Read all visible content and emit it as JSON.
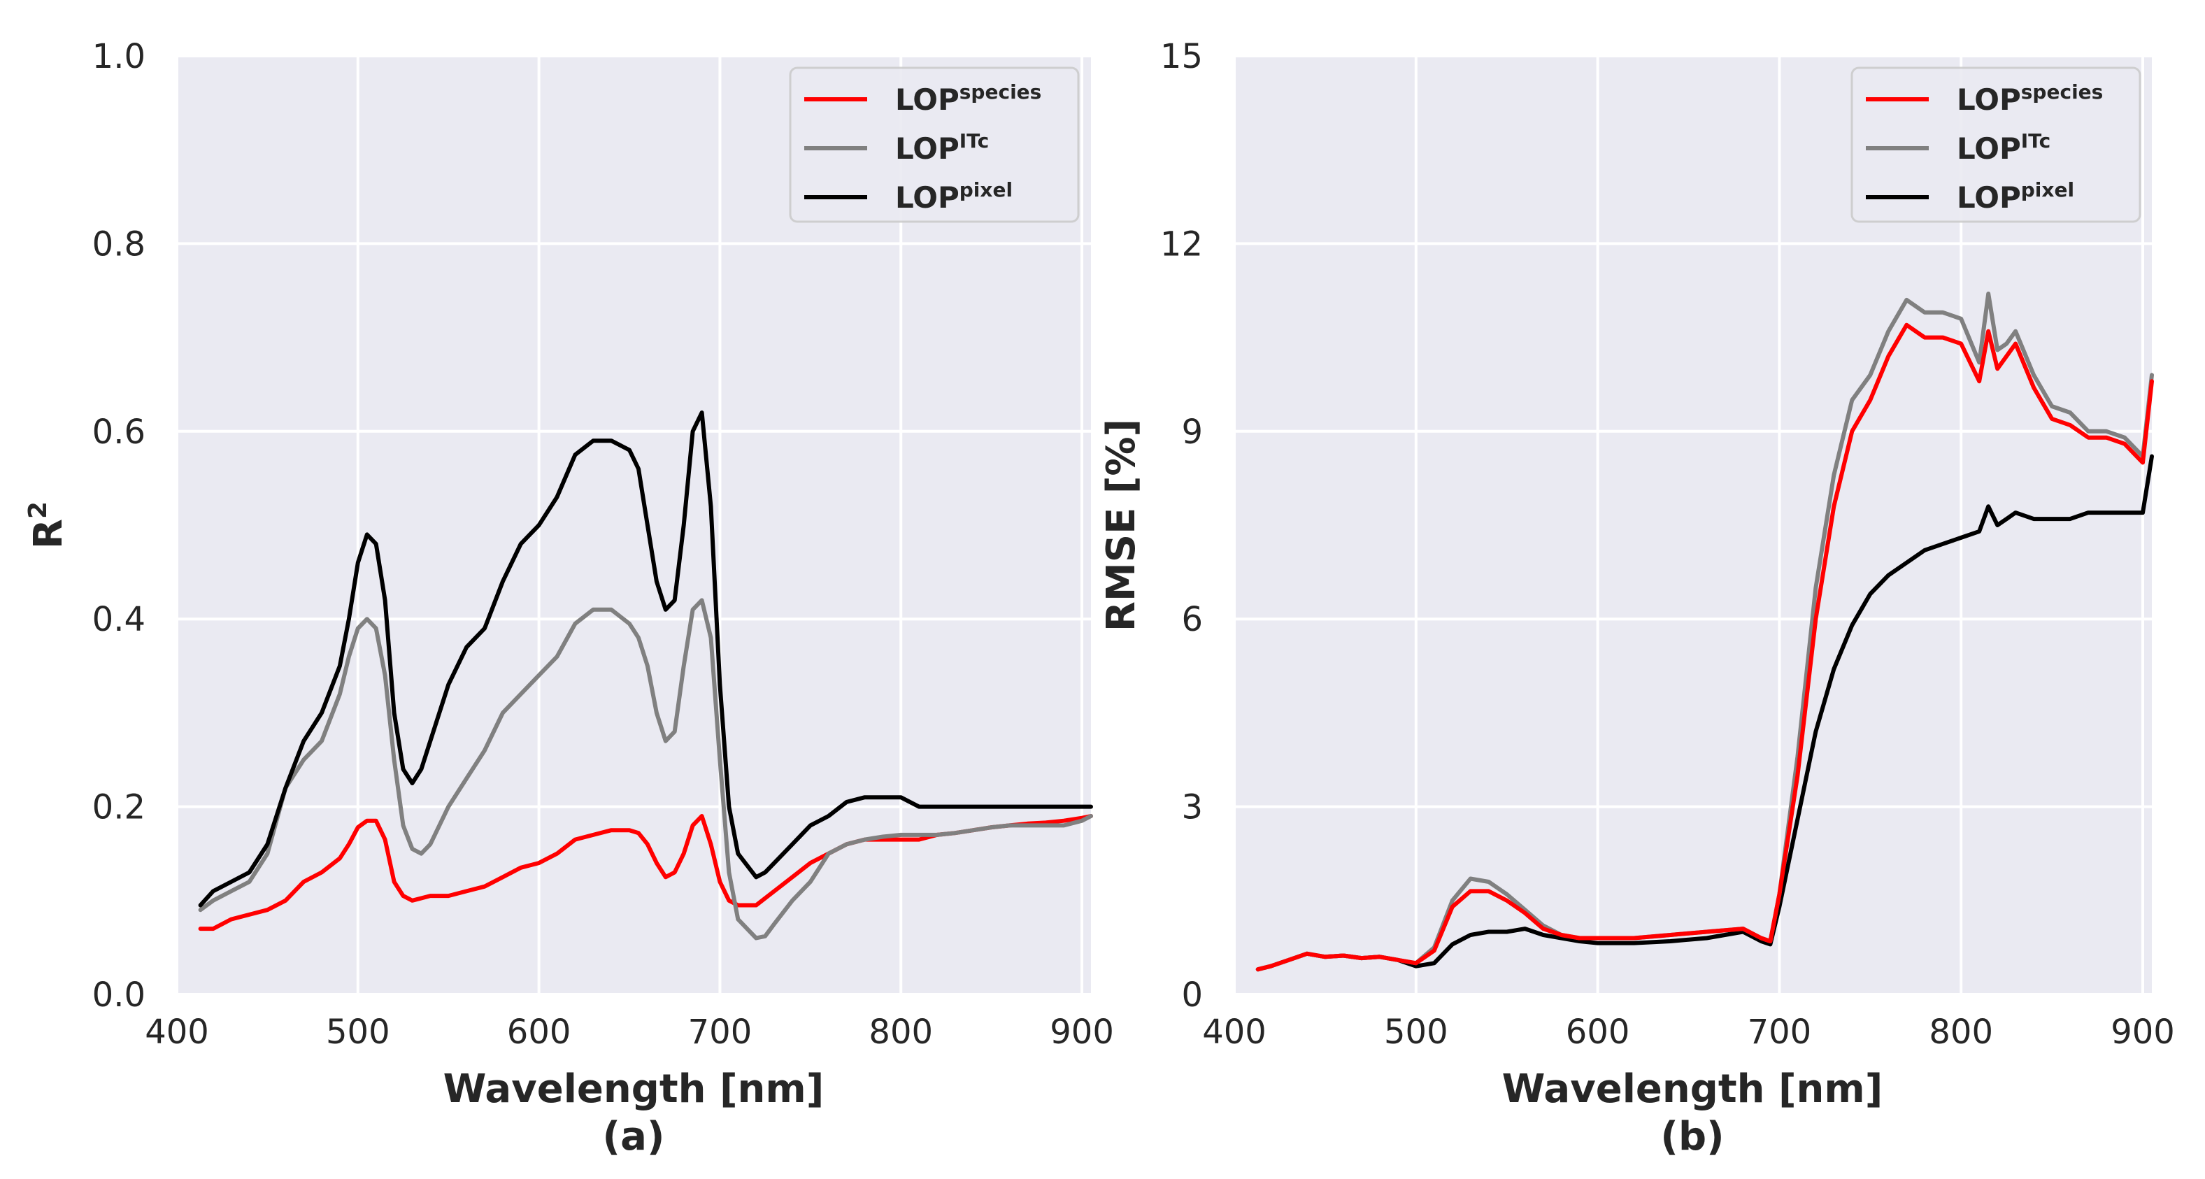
{
  "colors": {
    "species": "#ff0000",
    "itc": "#808080",
    "pixel": "#000000",
    "plot_bg": "#eaeaf2",
    "grid": "#ffffff"
  },
  "chart_data": [
    {
      "type": "line",
      "panel_label": "(a)",
      "xlabel": "Wavelength [nm]",
      "ylabel_main": "R",
      "ylabel_sup": "2",
      "xlim": [
        400,
        905
      ],
      "ylim": [
        0,
        1.0
      ],
      "xticks": [
        400,
        500,
        600,
        700,
        800,
        900
      ],
      "xtick_labels": [
        "400",
        "500",
        "600",
        "700",
        "800",
        "900"
      ],
      "yticks": [
        0.0,
        0.2,
        0.4,
        0.6,
        0.8,
        1.0
      ],
      "ytick_labels": [
        "0.0",
        "0.2",
        "0.4",
        "0.6",
        "0.8",
        "1.0"
      ],
      "legend_position": "top-right",
      "series": [
        {
          "key": "species",
          "name": "LOP",
          "sup": "species",
          "x": [
            413,
            420,
            430,
            440,
            450,
            460,
            470,
            480,
            490,
            495,
            500,
            505,
            510,
            515,
            520,
            525,
            530,
            540,
            550,
            560,
            570,
            580,
            590,
            600,
            610,
            620,
            630,
            640,
            650,
            655,
            660,
            665,
            670,
            675,
            680,
            685,
            690,
            695,
            700,
            705,
            710,
            720,
            730,
            740,
            750,
            760,
            770,
            780,
            790,
            800,
            810,
            820,
            830,
            840,
            850,
            860,
            870,
            880,
            890,
            900,
            905
          ],
          "y": [
            0.07,
            0.07,
            0.08,
            0.085,
            0.09,
            0.1,
            0.12,
            0.13,
            0.145,
            0.16,
            0.178,
            0.185,
            0.185,
            0.165,
            0.12,
            0.105,
            0.1,
            0.105,
            0.105,
            0.11,
            0.115,
            0.125,
            0.135,
            0.14,
            0.15,
            0.165,
            0.17,
            0.175,
            0.175,
            0.172,
            0.16,
            0.14,
            0.125,
            0.13,
            0.15,
            0.18,
            0.19,
            0.16,
            0.12,
            0.1,
            0.095,
            0.095,
            0.11,
            0.125,
            0.14,
            0.15,
            0.16,
            0.165,
            0.165,
            0.165,
            0.165,
            0.17,
            0.172,
            0.175,
            0.178,
            0.18,
            0.182,
            0.183,
            0.185,
            0.188,
            0.19
          ]
        },
        {
          "key": "itc",
          "name": "LOP",
          "sup": "ITc",
          "x": [
            413,
            420,
            430,
            440,
            450,
            460,
            470,
            480,
            490,
            495,
            500,
            505,
            510,
            515,
            520,
            525,
            530,
            535,
            540,
            550,
            560,
            570,
            580,
            590,
            600,
            610,
            620,
            630,
            640,
            650,
            655,
            660,
            665,
            670,
            675,
            680,
            685,
            690,
            695,
            700,
            705,
            710,
            720,
            725,
            730,
            740,
            750,
            760,
            770,
            780,
            790,
            800,
            810,
            820,
            830,
            840,
            850,
            860,
            870,
            880,
            890,
            900,
            905
          ],
          "y": [
            0.09,
            0.1,
            0.11,
            0.12,
            0.15,
            0.22,
            0.25,
            0.27,
            0.32,
            0.36,
            0.39,
            0.4,
            0.39,
            0.34,
            0.25,
            0.18,
            0.155,
            0.15,
            0.16,
            0.2,
            0.23,
            0.26,
            0.3,
            0.32,
            0.34,
            0.36,
            0.395,
            0.41,
            0.41,
            0.395,
            0.38,
            0.35,
            0.3,
            0.27,
            0.28,
            0.35,
            0.41,
            0.42,
            0.38,
            0.25,
            0.13,
            0.08,
            0.06,
            0.062,
            0.075,
            0.1,
            0.12,
            0.15,
            0.16,
            0.165,
            0.168,
            0.17,
            0.17,
            0.17,
            0.172,
            0.175,
            0.178,
            0.18,
            0.18,
            0.18,
            0.18,
            0.185,
            0.19
          ]
        },
        {
          "key": "pixel",
          "name": "LOP",
          "sup": "pixel",
          "x": [
            413,
            420,
            430,
            440,
            450,
            460,
            470,
            480,
            490,
            495,
            500,
            505,
            510,
            515,
            520,
            525,
            530,
            535,
            540,
            550,
            560,
            570,
            580,
            590,
            600,
            610,
            620,
            630,
            640,
            650,
            655,
            660,
            665,
            670,
            675,
            680,
            685,
            690,
            695,
            700,
            705,
            710,
            720,
            725,
            730,
            740,
            750,
            760,
            770,
            780,
            790,
            800,
            810,
            820,
            830,
            840,
            850,
            860,
            870,
            880,
            890,
            900,
            905
          ],
          "y": [
            0.095,
            0.11,
            0.12,
            0.13,
            0.16,
            0.22,
            0.27,
            0.3,
            0.35,
            0.4,
            0.46,
            0.49,
            0.48,
            0.42,
            0.3,
            0.24,
            0.225,
            0.24,
            0.27,
            0.33,
            0.37,
            0.39,
            0.44,
            0.48,
            0.5,
            0.53,
            0.575,
            0.59,
            0.59,
            0.58,
            0.56,
            0.5,
            0.44,
            0.41,
            0.42,
            0.5,
            0.6,
            0.62,
            0.52,
            0.33,
            0.2,
            0.15,
            0.125,
            0.13,
            0.14,
            0.16,
            0.18,
            0.19,
            0.205,
            0.21,
            0.21,
            0.21,
            0.2,
            0.2,
            0.2,
            0.2,
            0.2,
            0.2,
            0.2,
            0.2,
            0.2,
            0.2,
            0.2
          ]
        }
      ]
    },
    {
      "type": "line",
      "panel_label": "(b)",
      "xlabel": "Wavelength [nm]",
      "ylabel_main": "RMSE [%]",
      "xlim": [
        400,
        905
      ],
      "ylim": [
        0,
        15
      ],
      "xticks": [
        400,
        500,
        600,
        700,
        800,
        900
      ],
      "xtick_labels": [
        "400",
        "500",
        "600",
        "700",
        "800",
        "900"
      ],
      "yticks": [
        0,
        3,
        6,
        9,
        12,
        15
      ],
      "ytick_labels": [
        "0",
        "3",
        "6",
        "9",
        "12",
        "15"
      ],
      "legend_position": "top-right",
      "series": [
        {
          "key": "species",
          "name": "LOP",
          "sup": "species",
          "x": [
            413,
            420,
            430,
            440,
            450,
            460,
            470,
            480,
            490,
            500,
            510,
            520,
            530,
            540,
            550,
            560,
            570,
            580,
            590,
            600,
            620,
            640,
            660,
            680,
            690,
            695,
            700,
            710,
            720,
            730,
            740,
            750,
            760,
            770,
            780,
            790,
            800,
            810,
            815,
            820,
            825,
            830,
            840,
            850,
            860,
            870,
            880,
            890,
            900,
            905
          ],
          "y": [
            0.4,
            0.45,
            0.55,
            0.65,
            0.6,
            0.62,
            0.58,
            0.6,
            0.55,
            0.5,
            0.7,
            1.4,
            1.65,
            1.65,
            1.5,
            1.3,
            1.05,
            0.95,
            0.9,
            0.9,
            0.9,
            0.95,
            1.0,
            1.05,
            0.9,
            0.85,
            1.6,
            3.5,
            6.0,
            7.8,
            9.0,
            9.5,
            10.2,
            10.7,
            10.5,
            10.5,
            10.4,
            9.8,
            10.6,
            10.0,
            10.2,
            10.4,
            9.7,
            9.2,
            9.1,
            8.9,
            8.9,
            8.8,
            8.5,
            9.8
          ]
        },
        {
          "key": "itc",
          "name": "LOP",
          "sup": "ITc",
          "x": [
            413,
            420,
            430,
            440,
            450,
            460,
            470,
            480,
            490,
            500,
            510,
            520,
            530,
            540,
            550,
            560,
            570,
            580,
            590,
            600,
            620,
            640,
            660,
            680,
            690,
            695,
            700,
            710,
            720,
            730,
            740,
            750,
            760,
            770,
            780,
            790,
            800,
            810,
            815,
            820,
            825,
            830,
            840,
            850,
            860,
            870,
            880,
            890,
            900,
            905
          ],
          "y": [
            0.4,
            0.45,
            0.55,
            0.65,
            0.6,
            0.62,
            0.58,
            0.6,
            0.55,
            0.5,
            0.75,
            1.5,
            1.85,
            1.8,
            1.6,
            1.35,
            1.1,
            0.95,
            0.9,
            0.9,
            0.9,
            0.95,
            1.0,
            1.05,
            0.9,
            0.85,
            1.6,
            3.8,
            6.5,
            8.3,
            9.5,
            9.9,
            10.6,
            11.1,
            10.9,
            10.9,
            10.8,
            10.1,
            11.2,
            10.3,
            10.4,
            10.6,
            9.9,
            9.4,
            9.3,
            9.0,
            9.0,
            8.9,
            8.6,
            9.9
          ]
        },
        {
          "key": "pixel",
          "name": "LOP",
          "sup": "pixel",
          "x": [
            413,
            420,
            430,
            440,
            450,
            460,
            470,
            480,
            490,
            500,
            510,
            520,
            530,
            540,
            550,
            560,
            570,
            580,
            590,
            600,
            620,
            640,
            660,
            680,
            690,
            695,
            700,
            710,
            720,
            730,
            740,
            750,
            760,
            770,
            780,
            790,
            800,
            810,
            815,
            820,
            825,
            830,
            840,
            850,
            860,
            870,
            880,
            890,
            900,
            905
          ],
          "y": [
            0.4,
            0.45,
            0.55,
            0.65,
            0.6,
            0.62,
            0.58,
            0.6,
            0.55,
            0.45,
            0.5,
            0.8,
            0.95,
            1.0,
            1.0,
            1.05,
            0.95,
            0.9,
            0.85,
            0.82,
            0.82,
            0.85,
            0.9,
            1.0,
            0.85,
            0.8,
            1.4,
            2.8,
            4.2,
            5.2,
            5.9,
            6.4,
            6.7,
            6.9,
            7.1,
            7.2,
            7.3,
            7.4,
            7.8,
            7.5,
            7.6,
            7.7,
            7.6,
            7.6,
            7.6,
            7.7,
            7.7,
            7.7,
            7.7,
            8.6
          ]
        }
      ]
    }
  ]
}
